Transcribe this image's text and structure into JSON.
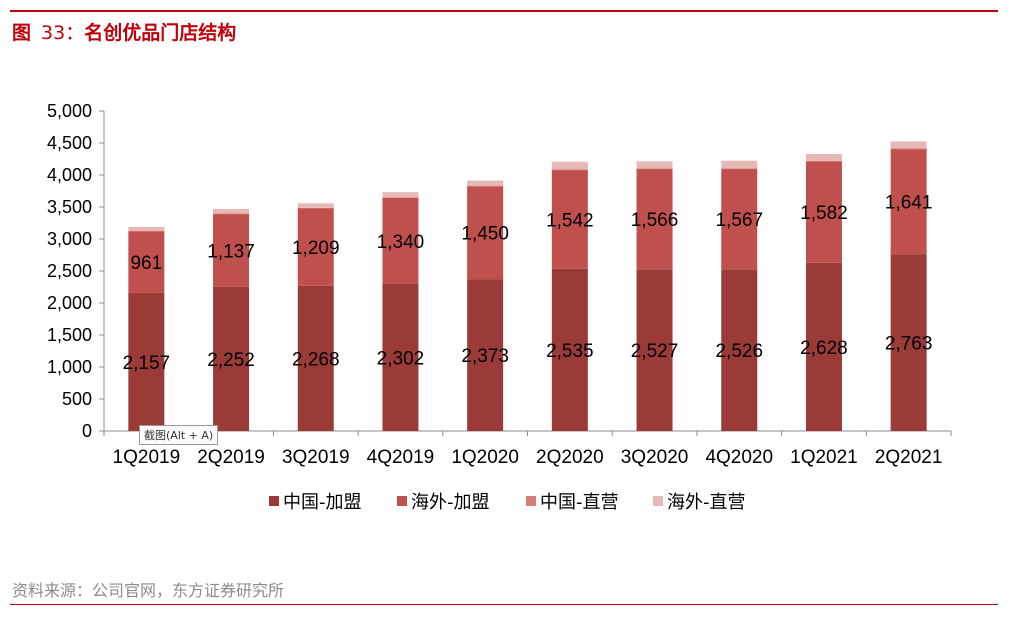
{
  "figure": {
    "label": "图",
    "number": "33：",
    "title": "名创优品门店结构"
  },
  "source": "资料来源：公司官网，东方证券研究所",
  "tooltip": "截图(Alt + A)",
  "colors": {
    "accent": "#c0000a",
    "china_franchise": "#9a3b38",
    "overseas_franchise": "#c0504d",
    "china_direct": "#d67e7a",
    "overseas_direct": "#e6b8b6"
  },
  "chart_data": {
    "type": "bar",
    "stacked": true,
    "categories": [
      "1Q2019",
      "2Q2019",
      "3Q2019",
      "4Q2019",
      "1Q2020",
      "2Q2020",
      "3Q2020",
      "4Q2020",
      "1Q2021",
      "2Q2021"
    ],
    "ylim": [
      0,
      5000
    ],
    "yticks": [
      0,
      500,
      1000,
      1500,
      2000,
      2500,
      3000,
      3500,
      4000,
      4500,
      5000
    ],
    "ytick_labels": [
      "0",
      "500",
      "1,000",
      "1,500",
      "2,000",
      "2,500",
      "3,000",
      "3,500",
      "4,000",
      "4,500",
      "5,000"
    ],
    "grid": false,
    "legend_position": "bottom",
    "series": [
      {
        "name": "中国-加盟",
        "color": "#9a3b38",
        "values": [
          2157,
          2252,
          2268,
          2302,
          2373,
          2535,
          2527,
          2526,
          2628,
          2763
        ],
        "labels": [
          "2,157",
          "2,252",
          "2,268",
          "2,302",
          "2,373",
          "2,535",
          "2,527",
          "2,526",
          "2,628",
          "2,763"
        ]
      },
      {
        "name": "海外-加盟",
        "color": "#c0504d",
        "values": [
          961,
          1137,
          1209,
          1340,
          1450,
          1542,
          1566,
          1567,
          1582,
          1641
        ],
        "labels": [
          "961",
          "1,137",
          "1,209",
          "1,340",
          "1,450",
          "1,542",
          "1,566",
          "1,567",
          "1,582",
          "1,641"
        ]
      },
      {
        "name": "中国-直营",
        "color": "#d67e7a",
        "values": [
          10,
          10,
          10,
          10,
          10,
          10,
          10,
          10,
          10,
          10
        ],
        "labels": []
      },
      {
        "name": "海外-直营",
        "color": "#e6b8b6",
        "values": [
          60,
          70,
          70,
          80,
          80,
          120,
          110,
          120,
          110,
          110
        ],
        "labels": []
      }
    ]
  }
}
